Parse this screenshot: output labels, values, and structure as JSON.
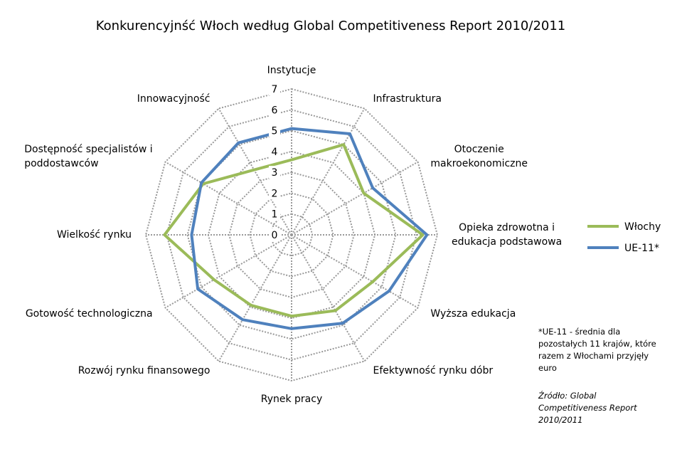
{
  "chart_data": {
    "type": "radar",
    "title": "Konkurencyjnść Włoch według Global Competitiveness Report 2010/2011",
    "categories": [
      "Instytucje",
      "Infrastruktura",
      "Otoczenie\nmakroekonomiczne",
      "Opieka zdrowotna  i\nedukacja podstawowa",
      "Wyższa edukacja",
      "Efektywność rynku dóbr",
      "Rynek pracy",
      "Rozwój rynku finansowego",
      "Gotowość technologiczna",
      "Wielkość rynku",
      "Dostępność specjalistów i\npoddostawców",
      "Innowacyjność"
    ],
    "series": [
      {
        "name": "Włochy",
        "color": "#9bbb59",
        "values": [
          3.6,
          5.0,
          4.0,
          6.3,
          4.5,
          4.2,
          3.9,
          3.9,
          4.3,
          6.1,
          4.9,
          3.6
        ]
      },
      {
        "name": "UE-11*",
        "color": "#4f81bd",
        "values": [
          5.1,
          5.6,
          4.5,
          6.5,
          5.4,
          4.9,
          4.5,
          4.7,
          5.2,
          4.8,
          5.0,
          5.1
        ]
      }
    ],
    "ylim": [
      0,
      7
    ],
    "yticks": [
      0,
      1,
      2,
      3,
      4,
      5,
      6,
      7
    ],
    "grid": true,
    "legend": "right",
    "footnote": "*UE-11 - średnia dla pozostałych 11 krajów, które razem z Włochami przyjęły euro",
    "source": "Źródło: Global Competitiveness Report 2010/2011"
  }
}
